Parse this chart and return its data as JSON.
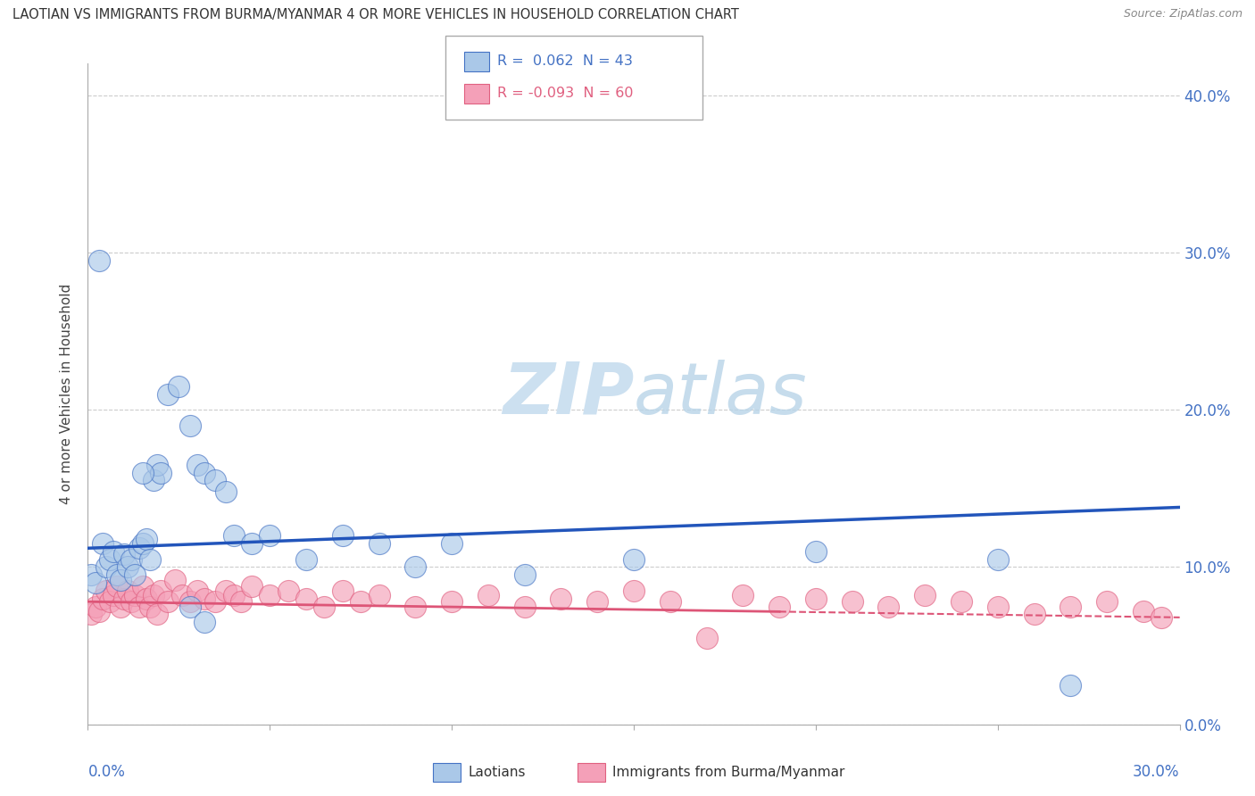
{
  "title": "LAOTIAN VS IMMIGRANTS FROM BURMA/MYANMAR 4 OR MORE VEHICLES IN HOUSEHOLD CORRELATION CHART",
  "source": "Source: ZipAtlas.com",
  "ylabel": "4 or more Vehicles in Household",
  "xlim": [
    0.0,
    0.3
  ],
  "ylim": [
    0.0,
    0.42
  ],
  "yticks": [
    0.0,
    0.1,
    0.2,
    0.3,
    0.4
  ],
  "legend_entry1": "R =  0.062  N = 43",
  "legend_entry2": "R = -0.093  N = 60",
  "laotian_color": "#aac8e8",
  "burma_color": "#f4a0b8",
  "laotian_edge_color": "#4472c4",
  "burma_edge_color": "#e06080",
  "laotian_line_color": "#2255bb",
  "burma_line_color": "#dd5577",
  "label_color": "#4472c4",
  "watermark_color": "#cce0f0",
  "laotian_R": 0.062,
  "burma_R": -0.093,
  "laotian_line_start_y": 0.112,
  "laotian_line_end_y": 0.138,
  "burma_line_start_y": 0.078,
  "burma_line_end_y": 0.068,
  "laotian_x": [
    0.001,
    0.002,
    0.003,
    0.004,
    0.005,
    0.006,
    0.007,
    0.008,
    0.009,
    0.01,
    0.011,
    0.012,
    0.013,
    0.014,
    0.015,
    0.016,
    0.017,
    0.018,
    0.019,
    0.02,
    0.022,
    0.025,
    0.028,
    0.03,
    0.032,
    0.035,
    0.038,
    0.04,
    0.045,
    0.05,
    0.06,
    0.07,
    0.08,
    0.09,
    0.1,
    0.12,
    0.15,
    0.2,
    0.25,
    0.27,
    0.028,
    0.032,
    0.015
  ],
  "laotian_y": [
    0.095,
    0.09,
    0.295,
    0.115,
    0.1,
    0.105,
    0.11,
    0.095,
    0.092,
    0.108,
    0.1,
    0.105,
    0.095,
    0.112,
    0.115,
    0.118,
    0.105,
    0.155,
    0.165,
    0.16,
    0.21,
    0.215,
    0.19,
    0.165,
    0.16,
    0.155,
    0.148,
    0.12,
    0.115,
    0.12,
    0.105,
    0.12,
    0.115,
    0.1,
    0.115,
    0.095,
    0.105,
    0.11,
    0.105,
    0.025,
    0.075,
    0.065,
    0.16
  ],
  "burma_x": [
    0.001,
    0.002,
    0.003,
    0.004,
    0.005,
    0.006,
    0.007,
    0.008,
    0.009,
    0.01,
    0.011,
    0.012,
    0.013,
    0.014,
    0.015,
    0.016,
    0.017,
    0.018,
    0.019,
    0.02,
    0.022,
    0.024,
    0.026,
    0.028,
    0.03,
    0.032,
    0.035,
    0.038,
    0.04,
    0.042,
    0.045,
    0.05,
    0.055,
    0.06,
    0.065,
    0.07,
    0.075,
    0.08,
    0.09,
    0.1,
    0.11,
    0.12,
    0.13,
    0.14,
    0.15,
    0.16,
    0.17,
    0.18,
    0.19,
    0.2,
    0.21,
    0.22,
    0.23,
    0.24,
    0.25,
    0.26,
    0.27,
    0.28,
    0.29,
    0.295
  ],
  "burma_y": [
    0.07,
    0.075,
    0.072,
    0.08,
    0.085,
    0.078,
    0.082,
    0.088,
    0.075,
    0.08,
    0.085,
    0.078,
    0.082,
    0.075,
    0.088,
    0.08,
    0.075,
    0.082,
    0.07,
    0.085,
    0.078,
    0.092,
    0.082,
    0.078,
    0.085,
    0.08,
    0.078,
    0.085,
    0.082,
    0.078,
    0.088,
    0.082,
    0.085,
    0.08,
    0.075,
    0.085,
    0.078,
    0.082,
    0.075,
    0.078,
    0.082,
    0.075,
    0.08,
    0.078,
    0.085,
    0.078,
    0.055,
    0.082,
    0.075,
    0.08,
    0.078,
    0.075,
    0.082,
    0.078,
    0.075,
    0.07,
    0.075,
    0.078,
    0.072,
    0.068
  ]
}
